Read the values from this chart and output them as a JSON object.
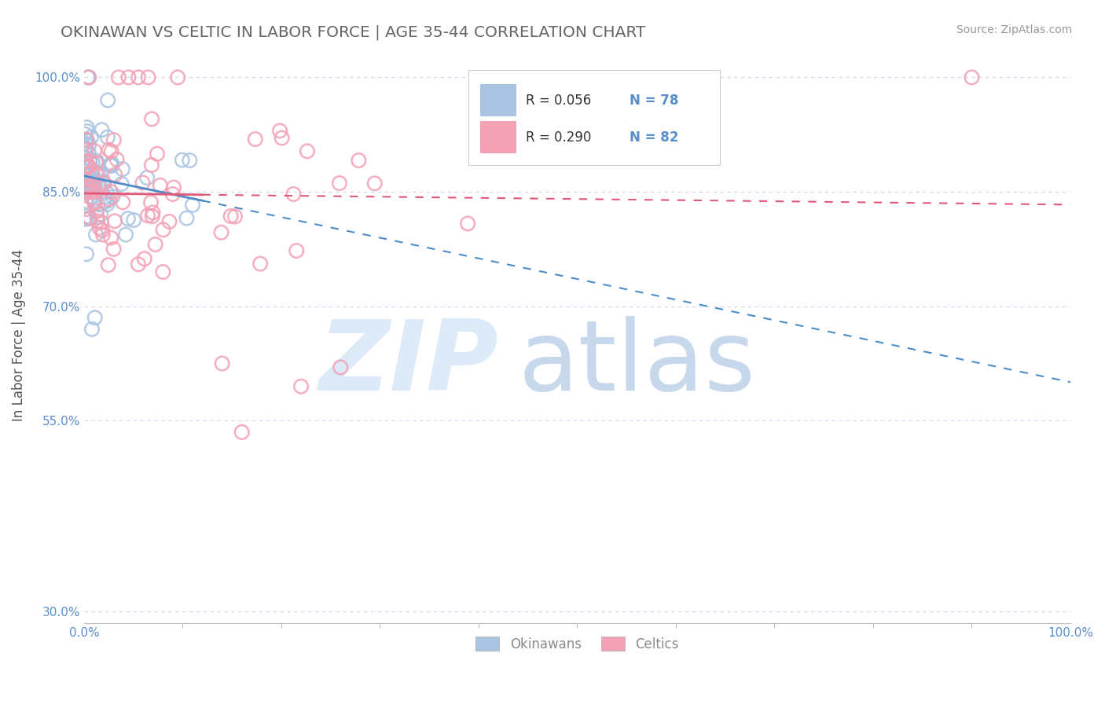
{
  "title": "OKINAWAN VS CELTIC IN LABOR FORCE | AGE 35-44 CORRELATION CHART",
  "source": "Source: ZipAtlas.com",
  "ylabel": "In Labor Force | Age 35-44",
  "xlim": [
    0.0,
    1.0
  ],
  "ylim": [
    0.285,
    1.04
  ],
  "x_tick_positions": [
    0.0,
    1.0
  ],
  "x_tick_labels": [
    "0.0%",
    "100.0%"
  ],
  "y_ticks": [
    0.3,
    0.55,
    0.7,
    0.85,
    1.0
  ],
  "y_tick_labels": [
    "30.0%",
    "55.0%",
    "70.0%",
    "85.0%",
    "100.0%"
  ],
  "legend_r1": "R = 0.056",
  "legend_n1": "N = 78",
  "legend_r2": "R = 0.290",
  "legend_n2": "N = 82",
  "okinawan_color": "#a8c4e0",
  "celtic_color": "#f4a0b5",
  "trend_okinawan_color": "#4d8bc9",
  "trend_celtic_color": "#e05878",
  "background_color": "#ffffff",
  "grid_color": "#c8d8ec",
  "title_color": "#666666",
  "source_color": "#999999",
  "ytick_color": "#5b8ec9",
  "xtick_color": "#5b8ec9",
  "watermark_zip_color": "#ddeaf7",
  "watermark_atlas_color": "#c8d8ec"
}
